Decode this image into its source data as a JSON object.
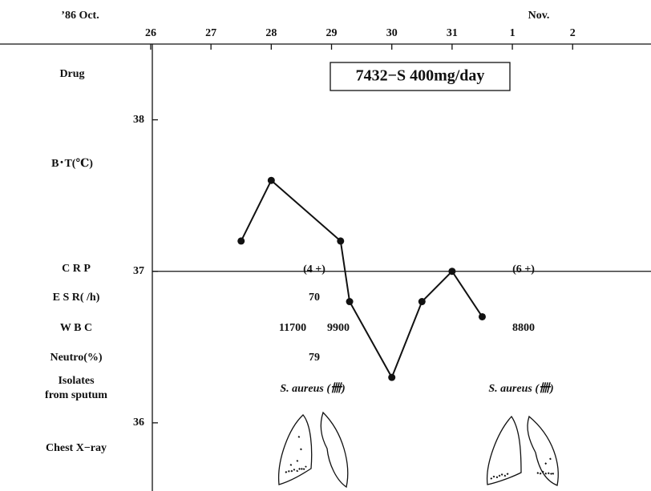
{
  "header": {
    "oct": "’86 Oct.",
    "nov": "Nov."
  },
  "drug": {
    "label": "Drug",
    "regimen": "7432−S 400mg/day"
  },
  "chart_data": {
    "type": "line",
    "ylabel": "B･T(℃)",
    "x": [
      27.5,
      28,
      29.15,
      29.3,
      30,
      30.5,
      31,
      31.5
    ],
    "values": [
      37.2,
      37.6,
      37.2,
      36.8,
      36.3,
      36.8,
      37.0,
      36.7
    ],
    "color": "#111111",
    "xlim": [
      23.5,
      34.3
    ],
    "xticks": [
      26,
      27,
      28,
      29,
      30,
      31,
      {
        "value": 32,
        "label": "1"
      },
      {
        "value": 33,
        "label": "2"
      }
    ],
    "ylim": [
      35.55,
      38.5
    ],
    "yticks": [
      36,
      37,
      38
    ],
    "reference_line": 37
  },
  "rows": [
    {
      "label": "C R P",
      "entries": [
        "(4 +)",
        "(6 +)"
      ]
    },
    {
      "label": "E S R( /h)",
      "entries": [
        "70"
      ]
    },
    {
      "label": "W B C",
      "entries": [
        "11700",
        "9900",
        "8800"
      ]
    },
    {
      "label": "Neutro(%)",
      "entries": [
        "79"
      ]
    },
    {
      "label": "Isolates",
      "label2": "from sputum",
      "entries": [
        "S. aureus (卌)",
        "S. aureus (卌)"
      ]
    },
    {
      "label": "Chest X−ray"
    }
  ]
}
